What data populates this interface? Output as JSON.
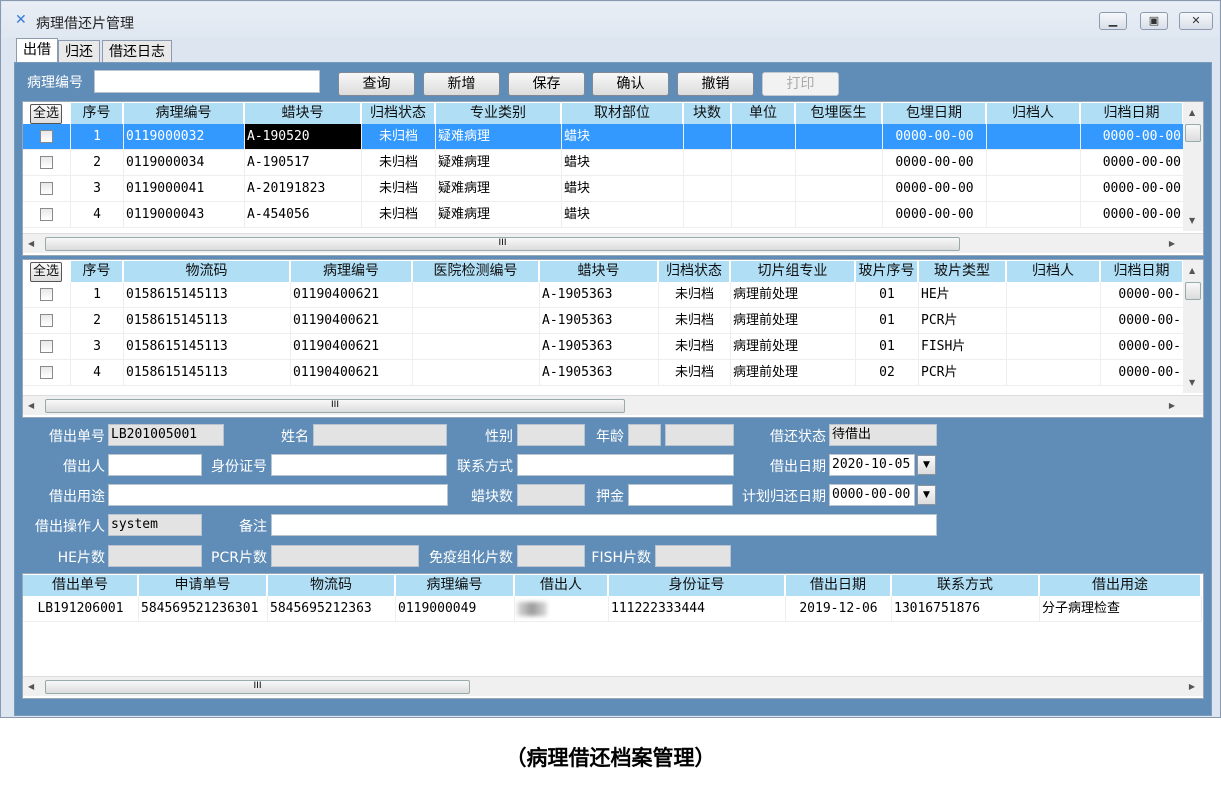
{
  "window": {
    "title": "病理借还片管理",
    "minimize": "▁",
    "maximize": "▣",
    "close": "✕"
  },
  "tabs": [
    {
      "label": "出借",
      "active": true
    },
    {
      "label": "归还"
    },
    {
      "label": "借还日志"
    }
  ],
  "toolbar": {
    "search_label": "病理编号",
    "search_value": "",
    "buttons": [
      {
        "label": "查询"
      },
      {
        "label": "新增"
      },
      {
        "label": "保存"
      },
      {
        "label": "确认"
      },
      {
        "label": "撤销"
      },
      {
        "label": "打印",
        "disabled": true
      }
    ]
  },
  "grid1": {
    "select_all": "全选",
    "columns": [
      "序号",
      "病理编号",
      "蜡块号",
      "归档状态",
      "专业类别",
      "取材部位",
      "块数",
      "单位",
      "包埋医生",
      "包埋日期",
      "归档人",
      "归档日期"
    ],
    "rows": [
      [
        "1",
        "0119000032",
        "A-190520",
        "未归档",
        "疑难病理",
        "蜡块",
        "",
        "",
        "",
        "0000-00-00",
        "",
        "0000-00-00"
      ],
      [
        "2",
        "0119000034",
        "A-190517",
        "未归档",
        "疑难病理",
        "蜡块",
        "",
        "",
        "",
        "0000-00-00",
        "",
        "0000-00-00"
      ],
      [
        "3",
        "0119000041",
        "A-20191823",
        "未归档",
        "疑难病理",
        "蜡块",
        "",
        "",
        "",
        "0000-00-00",
        "",
        "0000-00-00"
      ],
      [
        "4",
        "0119000043",
        "A-454056",
        "未归档",
        "疑难病理",
        "蜡块",
        "",
        "",
        "",
        "0000-00-00",
        "",
        "0000-00-00"
      ]
    ],
    "selected_row": 0
  },
  "grid2": {
    "select_all": "全选",
    "columns": [
      "序号",
      "物流码",
      "病理编号",
      "医院检测编号",
      "蜡块号",
      "归档状态",
      "切片组专业",
      "玻片序号",
      "玻片类型",
      "归档人",
      "归档日期"
    ],
    "rows": [
      [
        "1",
        "0158615145113",
        "01190400621",
        "",
        "A-1905363",
        "未归档",
        "病理前处理",
        "01",
        "HE片",
        "",
        "0000-00-"
      ],
      [
        "2",
        "0158615145113",
        "01190400621",
        "",
        "A-1905363",
        "未归档",
        "病理前处理",
        "01",
        "PCR片",
        "",
        "0000-00-"
      ],
      [
        "3",
        "0158615145113",
        "01190400621",
        "",
        "A-1905363",
        "未归档",
        "病理前处理",
        "01",
        "FISH片",
        "",
        "0000-00-"
      ],
      [
        "4",
        "0158615145113",
        "01190400621",
        "",
        "A-1905363",
        "未归档",
        "病理前处理",
        "02",
        "PCR片",
        "",
        "0000-00-"
      ]
    ]
  },
  "form": {
    "loan_no": {
      "label": "借出单号",
      "value": "LB201005001"
    },
    "name": {
      "label": "姓名",
      "value": ""
    },
    "gender": {
      "label": "性别",
      "value": ""
    },
    "age": {
      "label": "年龄",
      "value": "",
      "unit": ""
    },
    "loan_status": {
      "label": "借还状态",
      "value": "待借出"
    },
    "borrower": {
      "label": "借出人",
      "value": ""
    },
    "id_no": {
      "label": "身份证号",
      "value": ""
    },
    "contact": {
      "label": "联系方式",
      "value": ""
    },
    "loan_date": {
      "label": "借出日期",
      "value": "2020-10-05"
    },
    "purpose": {
      "label": "借出用途",
      "value": ""
    },
    "block_count": {
      "label": "蜡块数",
      "value": ""
    },
    "deposit": {
      "label": "押金",
      "value": ""
    },
    "plan_return_date": {
      "label": "计划归还日期",
      "value": "0000-00-00"
    },
    "operator": {
      "label": "借出操作人",
      "value": "system"
    },
    "remark": {
      "label": "备注",
      "value": ""
    },
    "he_count": {
      "label": "HE片数",
      "value": ""
    },
    "pcr_count": {
      "label": "PCR片数",
      "value": ""
    },
    "ihc_count": {
      "label": "免疫组化片数",
      "value": ""
    },
    "fish_count": {
      "label": "FISH片数",
      "value": ""
    }
  },
  "grid3": {
    "columns": [
      "借出单号",
      "申请单号",
      "物流码",
      "病理编号",
      "借出人",
      "身份证号",
      "借出日期",
      "联系方式",
      "借出用途"
    ],
    "rows": [
      [
        "LB191206001",
        "584569521236301",
        "5845695212363",
        "0119000049",
        "",
        "111222333444",
        "2019-12-06",
        "13016751876",
        "分子病理检查"
      ]
    ]
  },
  "caption": "（病理借还档案管理）",
  "colors": {
    "panel": "#5f8db8",
    "header": "#b0def5",
    "selection": "#3399ff"
  }
}
